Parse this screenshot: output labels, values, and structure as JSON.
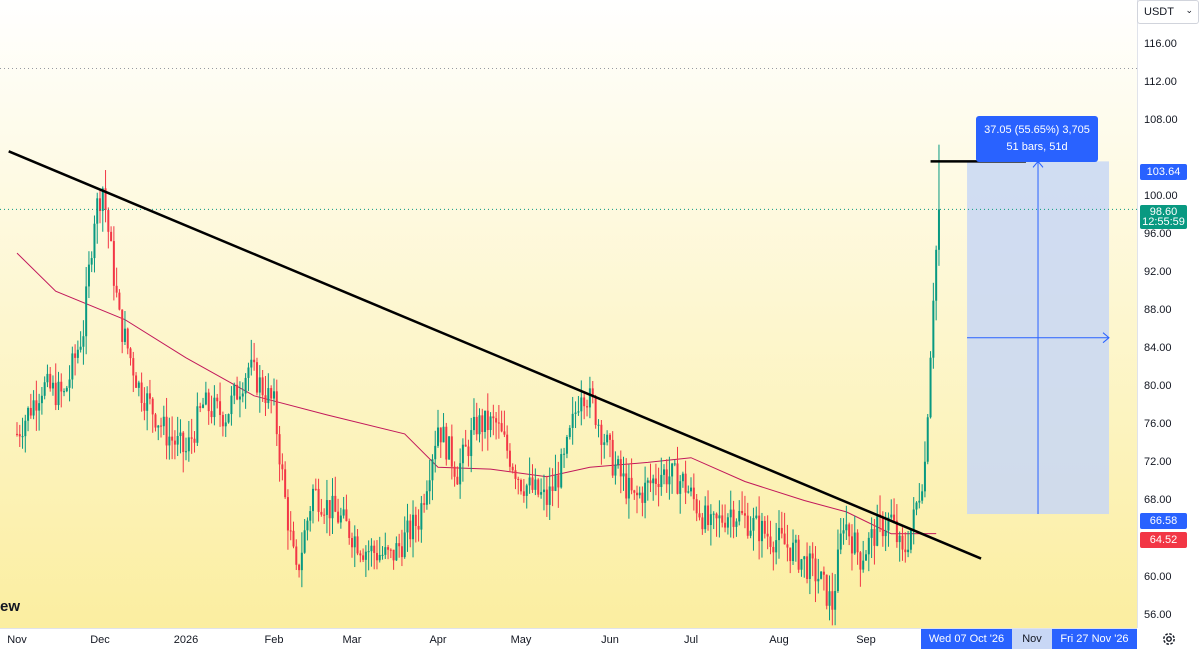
{
  "header": {
    "currency": "USDT"
  },
  "logo_fragment": "ew",
  "chart_data": {
    "type": "candlestick",
    "y_ticks": [
      "116.00",
      "112.00",
      "108.00",
      "100.00",
      "96.00",
      "92.00",
      "88.00",
      "84.00",
      "80.00",
      "76.00",
      "72.00",
      "68.00",
      "60.00",
      "56.00"
    ],
    "ylim": [
      54.6,
      120.6
    ],
    "x_ticks": [
      "Nov",
      "Dec",
      "2026",
      "Feb",
      "Mar",
      "Apr",
      "May",
      "Jun",
      "Jul",
      "Aug",
      "Sep"
    ],
    "x_range": [
      "2025-11-01",
      "2026-11-30"
    ],
    "highlighted_dates": {
      "start": "Wed 07 Oct '26",
      "mid": "Nov",
      "end": "Fri 27 Nov '26"
    },
    "price_labels": {
      "resistance": "103.64",
      "current_price": "98.60",
      "countdown": "12:55:59",
      "range_low": "66.58",
      "ma_value": "64.52"
    },
    "measurement": {
      "line1": "37.05 (55.65%) 3,705",
      "line2": "51 bars, 51d",
      "from": 66.58,
      "to": 103.64,
      "start_date": "2026-10-07",
      "end_date": "2026-11-27"
    },
    "trendline": {
      "from": {
        "date": "2025-10-29",
        "value": 104.7
      },
      "to": {
        "date": "2026-10-12",
        "value": 61.9
      }
    },
    "resistance_line": {
      "from_date": "2026-09-24",
      "to_date": "2026-10-28",
      "value": 103.64
    },
    "anchors": [
      {
        "date": "2025-11-01",
        "v": 75
      },
      {
        "date": "2025-11-10",
        "v": 80
      },
      {
        "date": "2025-11-18",
        "v": 79
      },
      {
        "date": "2025-11-25",
        "v": 86
      },
      {
        "date": "2025-11-29",
        "v": 98
      },
      {
        "date": "2025-12-02",
        "v": 101
      },
      {
        "date": "2025-12-08",
        "v": 87
      },
      {
        "date": "2025-12-15",
        "v": 80
      },
      {
        "date": "2025-12-25",
        "v": 75
      },
      {
        "date": "2026-01-01",
        "v": 73
      },
      {
        "date": "2026-01-07",
        "v": 78
      },
      {
        "date": "2026-01-15",
        "v": 77
      },
      {
        "date": "2026-01-23",
        "v": 82
      },
      {
        "date": "2026-02-01",
        "v": 78
      },
      {
        "date": "2026-02-05",
        "v": 68
      },
      {
        "date": "2026-02-09",
        "v": 60
      },
      {
        "date": "2026-02-15",
        "v": 69
      },
      {
        "date": "2026-02-25",
        "v": 66
      },
      {
        "date": "2026-03-05",
        "v": 63
      },
      {
        "date": "2026-03-15",
        "v": 62
      },
      {
        "date": "2026-03-25",
        "v": 66
      },
      {
        "date": "2026-04-01",
        "v": 76
      },
      {
        "date": "2026-04-08",
        "v": 71
      },
      {
        "date": "2026-04-15",
        "v": 76
      },
      {
        "date": "2026-04-22",
        "v": 76
      },
      {
        "date": "2026-05-01",
        "v": 70
      },
      {
        "date": "2026-05-10",
        "v": 68
      },
      {
        "date": "2026-05-16",
        "v": 72
      },
      {
        "date": "2026-05-22",
        "v": 80
      },
      {
        "date": "2026-05-26",
        "v": 78
      },
      {
        "date": "2026-06-02",
        "v": 72
      },
      {
        "date": "2026-06-10",
        "v": 68
      },
      {
        "date": "2026-06-20",
        "v": 71
      },
      {
        "date": "2026-06-28",
        "v": 70
      },
      {
        "date": "2026-07-08",
        "v": 65
      },
      {
        "date": "2026-07-15",
        "v": 67
      },
      {
        "date": "2026-07-25",
        "v": 65
      },
      {
        "date": "2026-08-05",
        "v": 63
      },
      {
        "date": "2026-08-15",
        "v": 60
      },
      {
        "date": "2026-08-20",
        "v": 57
      },
      {
        "date": "2026-08-24",
        "v": 66
      },
      {
        "date": "2026-08-30",
        "v": 62
      },
      {
        "date": "2026-09-05",
        "v": 65
      },
      {
        "date": "2026-09-10",
        "v": 66
      },
      {
        "date": "2026-09-14",
        "v": 62
      },
      {
        "date": "2026-09-18",
        "v": 66
      },
      {
        "date": "2026-09-22",
        "v": 72
      },
      {
        "date": "2026-09-25",
        "v": 90
      },
      {
        "date": "2026-09-27",
        "v": 98.6
      }
    ],
    "ma_anchors": [
      {
        "date": "2025-11-01",
        "v": 94
      },
      {
        "date": "2025-11-15",
        "v": 90
      },
      {
        "date": "2025-12-10",
        "v": 87
      },
      {
        "date": "2026-01-01",
        "v": 83
      },
      {
        "date": "2026-01-25",
        "v": 79
      },
      {
        "date": "2026-02-20",
        "v": 77
      },
      {
        "date": "2026-03-20",
        "v": 75
      },
      {
        "date": "2026-04-01",
        "v": 71.5
      },
      {
        "date": "2026-04-20",
        "v": 71.3
      },
      {
        "date": "2026-05-10",
        "v": 70.5
      },
      {
        "date": "2026-05-25",
        "v": 71.5
      },
      {
        "date": "2026-06-15",
        "v": 72
      },
      {
        "date": "2026-07-01",
        "v": 72.5
      },
      {
        "date": "2026-07-20",
        "v": 70
      },
      {
        "date": "2026-08-10",
        "v": 68
      },
      {
        "date": "2026-08-25",
        "v": 66.8
      },
      {
        "date": "2026-09-10",
        "v": 64.5
      },
      {
        "date": "2026-09-26",
        "v": 64.52
      }
    ],
    "colors": {
      "up": "#089981",
      "down": "#f23645",
      "ma": "#c2185b",
      "trend": "#000000",
      "measure_fill": "#c8d7f5",
      "measure_line": "#2962ff",
      "bg_top": "#ffffff",
      "bg_bottom": "#fbeea0"
    }
  }
}
